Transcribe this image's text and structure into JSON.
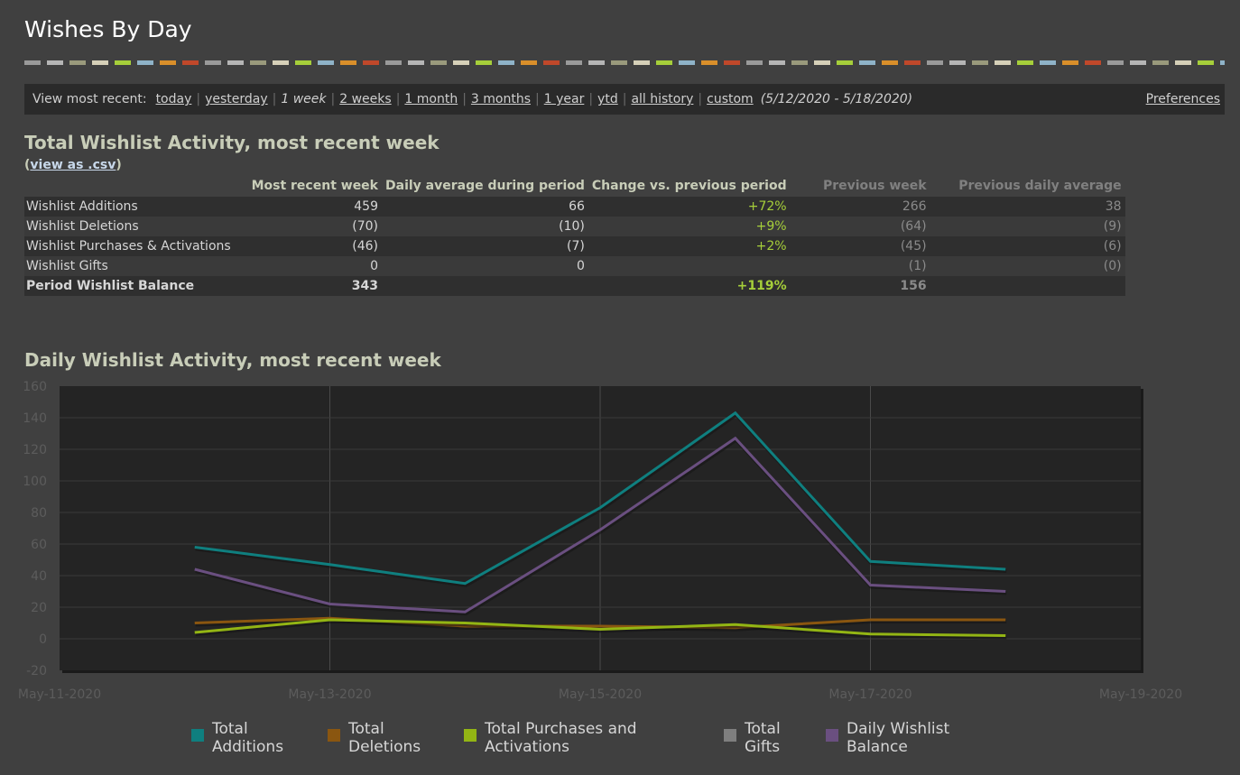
{
  "page": {
    "title": "Wishes By Day"
  },
  "stripe_colors": [
    "#9a9a9a",
    "#b5b5b5",
    "#9a9a7c",
    "#d6d0b8",
    "#a6cf3a",
    "#8fb3c8",
    "#d98f2a",
    "#c0482a"
  ],
  "toolbar": {
    "label": "View most recent:",
    "links": [
      {
        "label": "today",
        "current": false
      },
      {
        "label": "yesterday",
        "current": false
      },
      {
        "label": "1 week",
        "current": true
      },
      {
        "label": "2 weeks",
        "current": false
      },
      {
        "label": "1 month",
        "current": false
      },
      {
        "label": "3 months",
        "current": false
      },
      {
        "label": "1 year",
        "current": false
      },
      {
        "label": "ytd",
        "current": false
      },
      {
        "label": "all history",
        "current": false
      },
      {
        "label": "custom",
        "current": false
      }
    ],
    "range": "(5/12/2020 - 5/18/2020)",
    "preferences": "Preferences"
  },
  "summary": {
    "title": "Total Wishlist Activity, most recent week",
    "csv_open": "(",
    "csv_link": "view as .csv",
    "csv_close": ")",
    "headers": [
      "Most recent week",
      "Daily average during period",
      "Change vs. previous period",
      "Previous week",
      "Previous daily average"
    ],
    "rows": [
      {
        "label": "Wishlist Additions",
        "week": "459",
        "avg": "66",
        "change": "+72%",
        "prev_week": "266",
        "prev_avg": "38"
      },
      {
        "label": "Wishlist Deletions",
        "week": "(70)",
        "avg": "(10)",
        "change": "+9%",
        "prev_week": "(64)",
        "prev_avg": "(9)"
      },
      {
        "label": "Wishlist Purchases & Activations",
        "week": "(46)",
        "avg": "(7)",
        "change": "+2%",
        "prev_week": "(45)",
        "prev_avg": "(6)"
      },
      {
        "label": "Wishlist Gifts",
        "week": "0",
        "avg": "0",
        "change": "",
        "prev_week": "(1)",
        "prev_avg": "(0)"
      }
    ],
    "total": {
      "label": "Period Wishlist Balance",
      "week": "343",
      "avg": "",
      "change": "+119%",
      "prev_week": "156",
      "prev_avg": ""
    }
  },
  "daily": {
    "title": "Daily Wishlist Activity, most recent week"
  },
  "chart_data": {
    "type": "line",
    "x_tick_labels": [
      "May-11-2020",
      "May-13-2020",
      "May-15-2020",
      "May-17-2020",
      "May-19-2020"
    ],
    "x": [
      "May-12-2020",
      "May-13-2020",
      "May-14-2020",
      "May-15-2020",
      "May-16-2020",
      "May-17-2020",
      "May-18-2020"
    ],
    "ylim": [
      -20,
      160
    ],
    "y_ticks": [
      -20,
      0,
      20,
      40,
      60,
      80,
      100,
      120,
      140,
      160
    ],
    "grid": true,
    "legend_position": "bottom",
    "series": [
      {
        "name": "Total Additions",
        "color": "#0f7f7f",
        "values": [
          58,
          47,
          35,
          83,
          143,
          49,
          44
        ]
      },
      {
        "name": "Total Deletions",
        "color": "#8a5610",
        "values": [
          10,
          13,
          8,
          8,
          7,
          12,
          12
        ]
      },
      {
        "name": "Total Purchases and Activations",
        "color": "#93b514",
        "values": [
          4,
          12,
          10,
          6,
          9,
          3,
          2
        ]
      },
      {
        "name": "Total Gifts",
        "color": "#7f7f7f",
        "values": [
          0,
          0,
          0,
          0,
          0,
          0,
          0
        ]
      },
      {
        "name": "Daily Wishlist Balance",
        "color": "#6a4f80",
        "values": [
          44,
          22,
          17,
          69,
          127,
          34,
          30
        ]
      }
    ]
  }
}
